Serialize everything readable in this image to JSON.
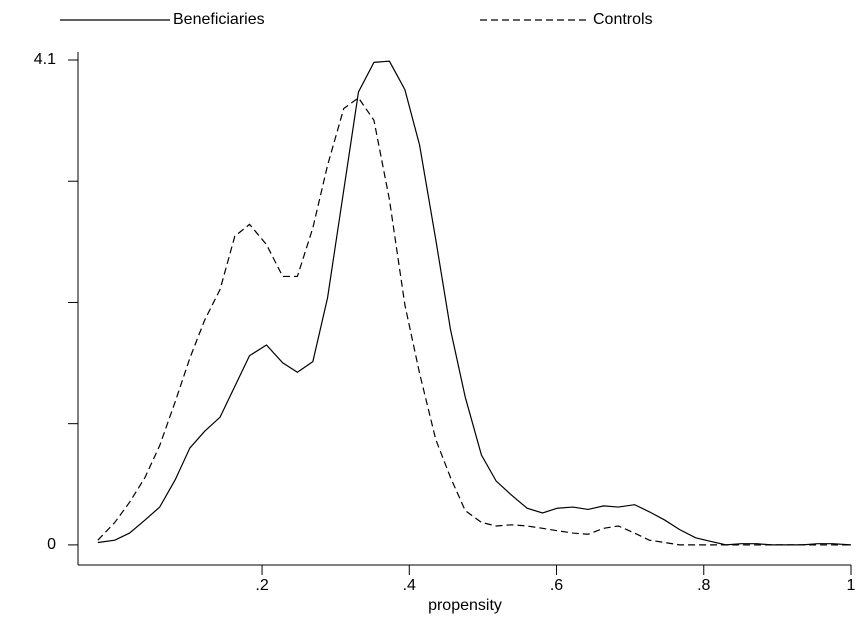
{
  "chart_data": {
    "type": "line",
    "x_label": "propensity",
    "x": [
      -0.023,
      0,
      0.02,
      0.041,
      0.061,
      0.082,
      0.102,
      0.122,
      0.143,
      0.163,
      0.183,
      0.206,
      0.228,
      0.248,
      0.269,
      0.289,
      0.311,
      0.331,
      0.352,
      0.373,
      0.394,
      0.414,
      0.436,
      0.456,
      0.476,
      0.498,
      0.518,
      0.539,
      0.56,
      0.581,
      0.601,
      0.622,
      0.643,
      0.664,
      0.684,
      0.706,
      0.726,
      0.747,
      0.767,
      0.789,
      0.809,
      0.83,
      0.851,
      0.872,
      0.892,
      0.914,
      0.934,
      0.955,
      0.975,
      1
    ],
    "series": [
      {
        "name": "Beneficiaries",
        "color": "#000000",
        "dash": false,
        "values": [
          0.02,
          0.04,
          0.1,
          0.21,
          0.32,
          0.55,
          0.82,
          0.96,
          1.08,
          1.34,
          1.6,
          1.69,
          1.54,
          1.46,
          1.55,
          2.09,
          3.0,
          3.83,
          4.08,
          4.09,
          3.85,
          3.38,
          2.58,
          1.82,
          1.25,
          0.76,
          0.54,
          0.42,
          0.31,
          0.27,
          0.31,
          0.32,
          0.3,
          0.33,
          0.32,
          0.34,
          0.28,
          0.21,
          0.13,
          0.06,
          0.03,
          0,
          0.01,
          0.01,
          0,
          0,
          0,
          0.01,
          0.01,
          0
        ]
      },
      {
        "name": "Controls",
        "color": "#000000",
        "dash": true,
        "values": [
          0.04,
          0.19,
          0.36,
          0.57,
          0.84,
          1.21,
          1.58,
          1.9,
          2.16,
          2.61,
          2.71,
          2.54,
          2.27,
          2.27,
          2.68,
          3.21,
          3.69,
          3.78,
          3.59,
          2.92,
          2.03,
          1.45,
          0.89,
          0.57,
          0.29,
          0.19,
          0.16,
          0.17,
          0.16,
          0.14,
          0.12,
          0.1,
          0.09,
          0.14,
          0.16,
          0.1,
          0.04,
          0.02,
          0,
          0,
          0,
          0,
          0,
          0,
          0,
          0,
          0,
          0,
          0,
          0
        ]
      }
    ],
    "xlim": [
      -0.05,
      1
    ],
    "xticks": [
      {
        "value": 0.2,
        "label": ".2"
      },
      {
        "value": 0.4,
        "label": ".4"
      },
      {
        "value": 0.6,
        "label": ".6"
      },
      {
        "value": 0.8,
        "label": ".8"
      },
      1
    ],
    "ylim": [
      -0.17,
      4.1
    ],
    "yticks": [
      0,
      4.1
    ],
    "yminor_ticks": [
      1.025,
      2.05,
      3.075
    ],
    "grid": false
  }
}
